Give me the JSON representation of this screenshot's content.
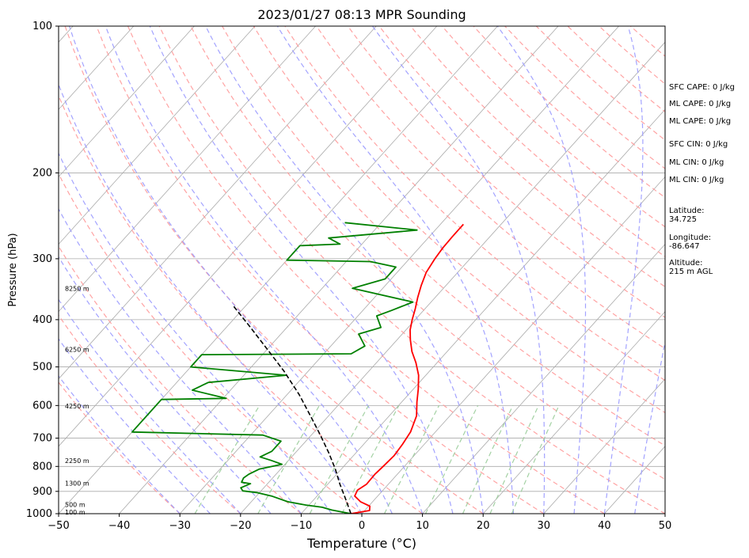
{
  "chart_data": {
    "type": "line",
    "title": "2023/01/27 08:13 MPR Sounding",
    "xlabel": "Temperature (°C)",
    "ylabel": "Pressure (hPa)",
    "xlim": [
      -50,
      50
    ],
    "ylim": [
      1000,
      100
    ],
    "y_scale": "log",
    "x_ticks": [
      "−50",
      "−40",
      "−30",
      "−20",
      "−10",
      "0",
      "10",
      "20",
      "30",
      "40",
      "50"
    ],
    "y_ticks": [
      "100",
      "200",
      "300",
      "400",
      "500",
      "600",
      "700",
      "800",
      "900",
      "1000"
    ],
    "height_labels": [
      {
        "pressure": 992,
        "text": "100 m"
      },
      {
        "pressure": 958,
        "text": "500 m"
      },
      {
        "pressure": 866,
        "text": "1300 m"
      },
      {
        "pressure": 778,
        "text": "2250 m"
      },
      {
        "pressure": 601,
        "text": "4250 m"
      },
      {
        "pressure": 460,
        "text": "6250 m"
      },
      {
        "pressure": 345,
        "text": "8250 m"
      }
    ],
    "series": [
      {
        "role": "temperature",
        "color": "#ff0000",
        "points": [
          [
            -1.8,
            1000
          ],
          [
            0.8,
            985
          ],
          [
            0.2,
            965
          ],
          [
            -2.0,
            945
          ],
          [
            -3.8,
            920
          ],
          [
            -4.2,
            895
          ],
          [
            -3.6,
            870
          ],
          [
            -3.7,
            830
          ],
          [
            -3.5,
            800
          ],
          [
            -3.3,
            760
          ],
          [
            -3.6,
            720
          ],
          [
            -4.1,
            680
          ],
          [
            -5.5,
            630
          ],
          [
            -7.5,
            590
          ],
          [
            -9.2,
            555
          ],
          [
            -11.2,
            520
          ],
          [
            -13.5,
            490
          ],
          [
            -15.8,
            465
          ],
          [
            -17.8,
            440
          ],
          [
            -19.3,
            420
          ],
          [
            -20.5,
            400
          ],
          [
            -21.6,
            380
          ],
          [
            -22.9,
            360
          ],
          [
            -24.1,
            340
          ],
          [
            -25.2,
            320
          ],
          [
            -25.8,
            300
          ],
          [
            -26.1,
            285
          ],
          [
            -26.2,
            270
          ],
          [
            -26.2,
            255
          ]
        ]
      },
      {
        "role": "dewpoint",
        "color": "#008000",
        "points": [
          [
            -1.8,
            1000
          ],
          [
            -5.5,
            983
          ],
          [
            -7.5,
            970
          ],
          [
            -10.5,
            960
          ],
          [
            -14.0,
            945
          ],
          [
            -17.5,
            920
          ],
          [
            -20.5,
            905
          ],
          [
            -23.0,
            898
          ],
          [
            -23.8,
            885
          ],
          [
            -22.8,
            868
          ],
          [
            -24.5,
            862
          ],
          [
            -24.8,
            845
          ],
          [
            -24.5,
            830
          ],
          [
            -23.5,
            810
          ],
          [
            -20.5,
            792
          ],
          [
            -22.8,
            778
          ],
          [
            -25.2,
            765
          ],
          [
            -24.1,
            745
          ],
          [
            -24.1,
            710
          ],
          [
            -28.0,
            690
          ],
          [
            -50.0,
            680
          ],
          [
            -50.0,
            583
          ],
          [
            -39.5,
            580
          ],
          [
            -46.3,
            558
          ],
          [
            -44.8,
            538
          ],
          [
            -33.0,
            520
          ],
          [
            -50.0,
            500
          ],
          [
            -50.0,
            472
          ],
          [
            -25.5,
            470
          ],
          [
            -24.4,
            453
          ],
          [
            -27.2,
            428
          ],
          [
            -24.5,
            415
          ],
          [
            -26.9,
            393
          ],
          [
            -25.3,
            383
          ],
          [
            -23.0,
            368
          ],
          [
            -35.0,
            345
          ],
          [
            -31.0,
            330
          ],
          [
            -31.0,
            312
          ],
          [
            -36.0,
            304
          ],
          [
            -50.0,
            302
          ],
          [
            -50.0,
            282
          ],
          [
            -43.6,
            280
          ],
          [
            -46.4,
            272
          ],
          [
            -33.0,
            262
          ],
          [
            -46.0,
            253
          ]
        ]
      },
      {
        "role": "parcel",
        "color": "#000000",
        "points": [
          [
            -1.8,
            1000
          ],
          [
            -5.0,
            930
          ],
          [
            -8.0,
            870
          ],
          [
            -11.0,
            810
          ],
          [
            -14.5,
            750
          ],
          [
            -18.5,
            690
          ],
          [
            -23.0,
            630
          ],
          [
            -28.0,
            570
          ],
          [
            -34.0,
            510
          ],
          [
            -40.0,
            460
          ],
          [
            -46.0,
            415
          ],
          [
            -52.0,
            375
          ]
        ]
      }
    ],
    "legend": [],
    "grid": true
  },
  "stats": [
    {
      "pressure": 134,
      "text": "SFC CAPE: 0 J/kg"
    },
    {
      "pressure": 145,
      "text": "ML CAPE: 0 J/kg"
    },
    {
      "pressure": 157,
      "text": "ML CAPE: 0 J/kg"
    },
    {
      "pressure": 175,
      "text": "SFC CIN: 0 J/kg"
    },
    {
      "pressure": 191,
      "text": "ML CIN: 0 J/kg"
    },
    {
      "pressure": 207,
      "text": "ML CIN: 0 J/kg"
    },
    {
      "pressure": 240,
      "text": "Latitude:"
    },
    {
      "pressure": 250,
      "text": "34.725"
    },
    {
      "pressure": 272,
      "text": "Longitude:"
    },
    {
      "pressure": 284,
      "text": "-86.647"
    },
    {
      "pressure": 307,
      "text": "Altitude:"
    },
    {
      "pressure": 320,
      "text": "215 m AGL"
    }
  ],
  "colors": {
    "temperature": "#ff0000",
    "dewpoint": "#008000",
    "parcel": "#000000",
    "isotherm": "#aaaaaa",
    "dry_adiabat": "#ff9999",
    "moist_adiabat": "#9999ff",
    "mixing_ratio": "#99cc99"
  }
}
